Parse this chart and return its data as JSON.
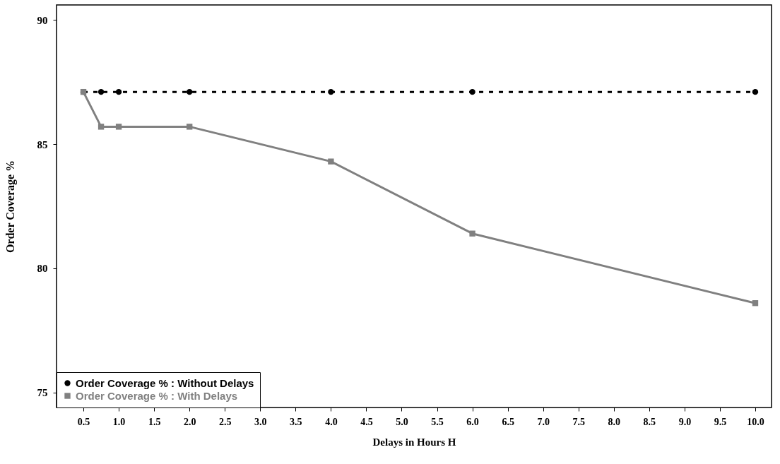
{
  "chart_data": {
    "type": "line",
    "xlabel": "Delays in Hours H",
    "ylabel": "Order Coverage %",
    "x": [
      0.5,
      0.75,
      1.0,
      2.0,
      4.0,
      6.0,
      10.0
    ],
    "series": [
      {
        "name": "Order Coverage % : Without Delays",
        "color": "#000000",
        "values": [
          87.1,
          87.1,
          87.1,
          87.1,
          87.1,
          87.1,
          87.1
        ],
        "marker": "circle",
        "line_style": "dotted"
      },
      {
        "name": "Order Coverage % : With Delays",
        "color": "#808080",
        "values": [
          87.1,
          85.7,
          85.7,
          85.7,
          84.3,
          81.4,
          78.6
        ],
        "marker": "square",
        "line_style": "solid"
      }
    ],
    "xlim": [
      0.12,
      10.23
    ],
    "xticks": [
      0.5,
      {
        "value": 1,
        "label": "1.0"
      },
      1.5,
      {
        "value": 2,
        "label": "2.0"
      },
      2.5,
      {
        "value": 3,
        "label": "3.0"
      },
      3.5,
      {
        "value": 4,
        "label": "4.0"
      },
      4.5,
      {
        "value": 5,
        "label": "5.0"
      },
      5.5,
      {
        "value": 6,
        "label": "6.0"
      },
      6.5,
      {
        "value": 7,
        "label": "7.0"
      },
      7.5,
      {
        "value": 8,
        "label": "8.0"
      },
      8.5,
      {
        "value": 9,
        "label": "9.0"
      },
      9.5,
      {
        "value": 10,
        "label": "10.0"
      }
    ],
    "ylim": [
      74.4,
      90.6
    ],
    "yticks": [
      75,
      80,
      85,
      90
    ],
    "legend": "bottom left",
    "grid": false
  }
}
